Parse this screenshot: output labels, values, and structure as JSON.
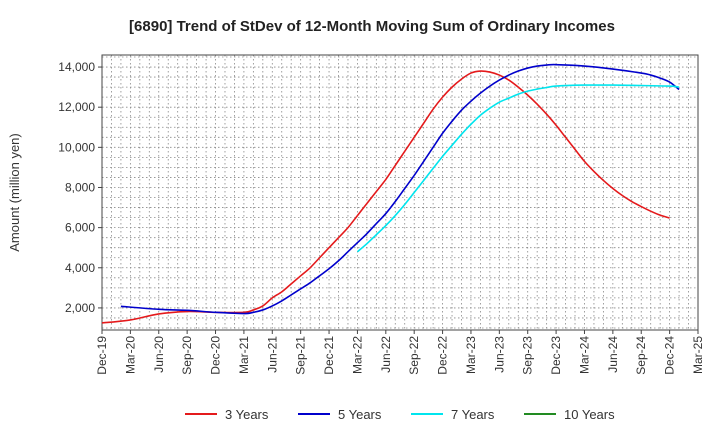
{
  "chart_data": {
    "type": "line",
    "title": "[6890]  Trend of StDev of 12-Month Moving Sum of Ordinary Incomes",
    "ylabel": "Amount (million yen)",
    "xlabel": "",
    "ylim": [
      900,
      14600
    ],
    "yticks": [
      2000,
      4000,
      6000,
      8000,
      10000,
      12000,
      14000
    ],
    "ytick_labels": [
      "2,000",
      "4,000",
      "6,000",
      "8,000",
      "10,000",
      "12,000",
      "14,000"
    ],
    "x_tick_labels": [
      "Dec-19",
      "Mar-20",
      "Jun-20",
      "Sep-20",
      "Dec-20",
      "Mar-21",
      "Jun-21",
      "Sep-21",
      "Dec-21",
      "Mar-22",
      "Jun-22",
      "Sep-22",
      "Dec-22",
      "Mar-23",
      "Jun-23",
      "Sep-23",
      "Dec-23",
      "Mar-24",
      "Jun-24",
      "Sep-24",
      "Dec-24",
      "Mar-25"
    ],
    "grid": true,
    "legend_position": "bottom",
    "series": [
      {
        "name": "3 Years",
        "color": "#e41a1c",
        "points": [
          [
            "Dec-19",
            1250
          ],
          [
            "Mar-20",
            1400
          ],
          [
            "Jun-20",
            1700
          ],
          [
            "Sep-20",
            1820
          ],
          [
            "Dec-20",
            1780
          ],
          [
            "Mar-21",
            1780
          ],
          [
            "Apr-21",
            1900
          ],
          [
            "May-21",
            2100
          ],
          [
            "Jun-21",
            2500
          ],
          [
            "Jul-21",
            2800
          ],
          [
            "Aug-21",
            3200
          ],
          [
            "Sep-21",
            3600
          ],
          [
            "Oct-21",
            4000
          ],
          [
            "Nov-21",
            4500
          ],
          [
            "Dec-21",
            5000
          ],
          [
            "Jan-22",
            5500
          ],
          [
            "Feb-22",
            6000
          ],
          [
            "Mar-22",
            6600
          ],
          [
            "Apr-22",
            7200
          ],
          [
            "May-22",
            7800
          ],
          [
            "Jun-22",
            8400
          ],
          [
            "Jul-22",
            9100
          ],
          [
            "Aug-22",
            9800
          ],
          [
            "Sep-22",
            10500
          ],
          [
            "Oct-22",
            11200
          ],
          [
            "Nov-22",
            11900
          ],
          [
            "Dec-22",
            12500
          ],
          [
            "Jan-23",
            13000
          ],
          [
            "Feb-23",
            13400
          ],
          [
            "Mar-23",
            13700
          ],
          [
            "Apr-23",
            13800
          ],
          [
            "May-23",
            13750
          ],
          [
            "Jun-23",
            13600
          ],
          [
            "Jul-23",
            13350
          ],
          [
            "Aug-23",
            13000
          ],
          [
            "Sep-23",
            12600
          ],
          [
            "Oct-23",
            12150
          ],
          [
            "Nov-23",
            11650
          ],
          [
            "Dec-23",
            11100
          ],
          [
            "Jan-24",
            10500
          ],
          [
            "Feb-24",
            9900
          ],
          [
            "Mar-24",
            9300
          ],
          [
            "Apr-24",
            8800
          ],
          [
            "May-24",
            8350
          ],
          [
            "Jun-24",
            7950
          ],
          [
            "Jul-24",
            7600
          ],
          [
            "Aug-24",
            7300
          ],
          [
            "Sep-24",
            7050
          ],
          [
            "Oct-24",
            6820
          ],
          [
            "Nov-24",
            6620
          ],
          [
            "Dec-24",
            6480
          ]
        ]
      },
      {
        "name": "5 Years",
        "color": "#0000cc",
        "points": [
          [
            "Feb-20",
            2080
          ],
          [
            "Jun-20",
            1930
          ],
          [
            "Sep-20",
            1880
          ],
          [
            "Dec-20",
            1780
          ],
          [
            "Mar-21",
            1720
          ],
          [
            "Apr-21",
            1780
          ],
          [
            "May-21",
            1900
          ],
          [
            "Jun-21",
            2100
          ],
          [
            "Jul-21",
            2350
          ],
          [
            "Aug-21",
            2650
          ],
          [
            "Sep-21",
            2950
          ],
          [
            "Oct-21",
            3250
          ],
          [
            "Nov-21",
            3600
          ],
          [
            "Dec-21",
            3950
          ],
          [
            "Jan-22",
            4350
          ],
          [
            "Feb-22",
            4800
          ],
          [
            "Mar-22",
            5250
          ],
          [
            "Apr-22",
            5700
          ],
          [
            "May-22",
            6200
          ],
          [
            "Jun-22",
            6700
          ],
          [
            "Jul-22",
            7300
          ],
          [
            "Aug-22",
            7950
          ],
          [
            "Sep-22",
            8600
          ],
          [
            "Oct-22",
            9300
          ],
          [
            "Nov-22",
            10000
          ],
          [
            "Dec-22",
            10700
          ],
          [
            "Jan-23",
            11300
          ],
          [
            "Feb-23",
            11850
          ],
          [
            "Mar-23",
            12300
          ],
          [
            "Apr-23",
            12700
          ],
          [
            "May-23",
            13050
          ],
          [
            "Jun-23",
            13350
          ],
          [
            "Jul-23",
            13600
          ],
          [
            "Aug-23",
            13800
          ],
          [
            "Sep-23",
            13950
          ],
          [
            "Oct-23",
            14050
          ],
          [
            "Nov-23",
            14100
          ],
          [
            "Dec-23",
            14120
          ],
          [
            "Mar-24",
            14050
          ],
          [
            "Jun-24",
            13900
          ],
          [
            "Sep-24",
            13700
          ],
          [
            "Oct-24",
            13600
          ],
          [
            "Nov-24",
            13450
          ],
          [
            "Dec-24",
            13250
          ],
          [
            "Jan-25",
            12880
          ]
        ]
      },
      {
        "name": "7 Years",
        "color": "#00e5ee",
        "points": [
          [
            "Mar-22",
            4800
          ],
          [
            "Apr-22",
            5200
          ],
          [
            "May-22",
            5650
          ],
          [
            "Jun-22",
            6100
          ],
          [
            "Jul-22",
            6600
          ],
          [
            "Aug-22",
            7150
          ],
          [
            "Sep-22",
            7750
          ],
          [
            "Oct-22",
            8350
          ],
          [
            "Nov-22",
            8950
          ],
          [
            "Dec-22",
            9550
          ],
          [
            "Jan-23",
            10100
          ],
          [
            "Feb-23",
            10650
          ],
          [
            "Mar-23",
            11150
          ],
          [
            "Apr-23",
            11600
          ],
          [
            "May-23",
            11950
          ],
          [
            "Jun-23",
            12250
          ],
          [
            "Jul-23",
            12450
          ],
          [
            "Aug-23",
            12650
          ],
          [
            "Sep-23",
            12800
          ],
          [
            "Oct-23",
            12900
          ],
          [
            "Nov-23",
            12980
          ],
          [
            "Dec-23",
            13050
          ],
          [
            "Mar-24",
            13100
          ],
          [
            "Jun-24",
            13100
          ],
          [
            "Sep-24",
            13080
          ],
          [
            "Dec-24",
            13050
          ],
          [
            "Jan-25",
            13000
          ]
        ]
      },
      {
        "name": "10 Years",
        "color": "#228b22",
        "points": []
      }
    ]
  }
}
